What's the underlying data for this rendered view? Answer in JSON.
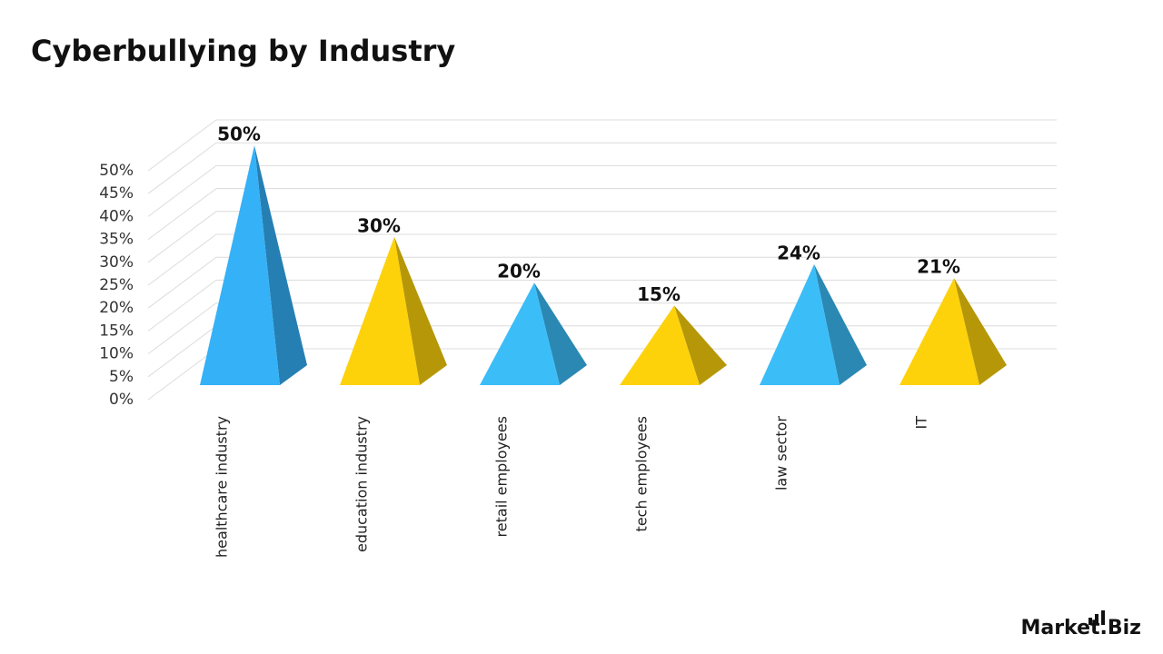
{
  "chart_data": {
    "type": "pyramid",
    "title": "Cyberbullying by Industry",
    "categories": [
      "healthcare industry",
      "education industry",
      "retail employees",
      "tech employees",
      "law sector",
      "IT"
    ],
    "values": [
      50,
      30,
      20,
      15,
      24,
      21
    ],
    "value_labels": [
      "50%",
      "30%",
      "20%",
      "15%",
      "24%",
      "21%"
    ],
    "colors": [
      "#35b1f7",
      "#fdd20b",
      "#3bbdf8",
      "#fdd20b",
      "#3bbdf8",
      "#fdd20b"
    ],
    "ylim": [
      0,
      50
    ],
    "yticks": [
      {
        "value": 0,
        "label": "0%"
      },
      {
        "value": 5,
        "label": "5%"
      },
      {
        "value": 10,
        "label": "10%"
      },
      {
        "value": 15,
        "label": "15%"
      },
      {
        "value": 20,
        "label": "20%"
      },
      {
        "value": 25,
        "label": "25%"
      },
      {
        "value": 30,
        "label": "30%"
      },
      {
        "value": 35,
        "label": "35%"
      },
      {
        "value": 40,
        "label": "40%"
      },
      {
        "value": 45,
        "label": "45%"
      },
      {
        "value": 50,
        "label": "50%"
      }
    ],
    "grid": true
  },
  "brand": "Market.Biz"
}
